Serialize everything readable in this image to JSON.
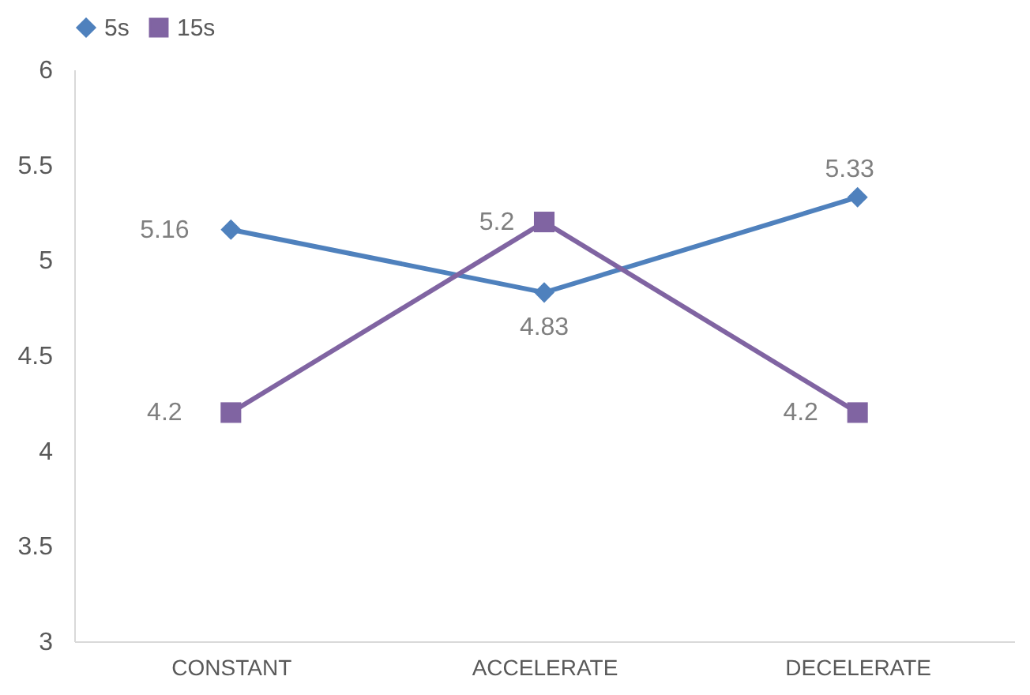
{
  "chart_data": {
    "type": "line",
    "categories": [
      "CONSTANT",
      "ACCELERATE",
      "DECELERATE"
    ],
    "series": [
      {
        "name": "5s",
        "color": "#4f81bd",
        "marker": "diamond",
        "values": [
          5.16,
          4.83,
          5.33
        ]
      },
      {
        "name": "15s",
        "color": "#8064a2",
        "marker": "square",
        "values": [
          4.2,
          5.2,
          4.2
        ]
      }
    ],
    "ylim": [
      3,
      6
    ],
    "yticks": [
      3,
      3.5,
      4,
      4.5,
      5,
      5.5,
      6
    ],
    "grid": false,
    "legend": "top",
    "data_labels": true,
    "line_style": "solid"
  }
}
